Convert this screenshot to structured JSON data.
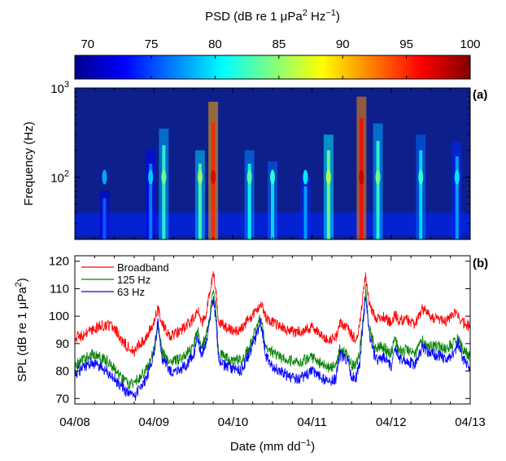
{
  "colorbar": {
    "label_prefix": "PSD (dB re 1 ",
    "label_mu": "μ",
    "label_pa": "Pa",
    "label_sup2": "2",
    "label_hz": " Hz",
    "label_supm1": "−1",
    "label_close": ")",
    "ticks": [
      "70",
      "75",
      "80",
      "85",
      "90",
      "95",
      "100"
    ],
    "range": [
      69,
      100
    ],
    "colormap": [
      "#00008f",
      "#0000ff",
      "#0080ff",
      "#00ffff",
      "#80ff80",
      "#ffff00",
      "#ff8000",
      "#ff0000",
      "#800000"
    ]
  },
  "panel_a": {
    "tag": "(a)",
    "ylabel": "Frequency (Hz)",
    "ytick_base": "10",
    "ytick_exps": [
      "2",
      "3"
    ],
    "background": "#0c1f8c"
  },
  "panel_b": {
    "tag": "(b)",
    "ylabel_prefix": "SPL (dB re 1 ",
    "ylabel_mu": "μ",
    "ylabel_pa": "Pa",
    "ylabel_sup": "2",
    "ylabel_close": ")"
  },
  "xaxis": {
    "ticks": [
      "04/08",
      "04/09",
      "04/10",
      "04/11",
      "04/12",
      "04/13"
    ],
    "label_prefix": "Date (mm dd",
    "label_sup": "−1",
    "label_close": ")"
  },
  "chart_data": [
    {
      "type": "heatmap",
      "title": "(a)",
      "xlabel": "Date (mm dd⁻¹)",
      "ylabel": "Frequency (Hz)",
      "y_scale": "log",
      "ylim": [
        20,
        1000
      ],
      "x_range": [
        "04/08",
        "04/13"
      ],
      "color_range": [
        69,
        100
      ],
      "color_label": "PSD (dB re 1 μPa² Hz⁻¹)",
      "hot_events": [
        {
          "date": "04/08 09:00",
          "peak_psd": 78,
          "freq_top": 70
        },
        {
          "date": "04/08 23:00",
          "peak_psd": 79,
          "freq_top": 200
        },
        {
          "date": "04/09 03:00",
          "peak_psd": 84,
          "freq_top": 350
        },
        {
          "date": "04/09 14:00",
          "peak_psd": 85,
          "freq_top": 200
        },
        {
          "date": "04/09 18:00",
          "peak_psd": 97,
          "freq_top": 700
        },
        {
          "date": "04/10 05:00",
          "peak_psd": 83,
          "freq_top": 200
        },
        {
          "date": "04/10 12:00",
          "peak_psd": 82,
          "freq_top": 150
        },
        {
          "date": "04/10 22:00",
          "peak_psd": 80,
          "freq_top": 100
        },
        {
          "date": "04/11 05:00",
          "peak_psd": 86,
          "freq_top": 300
        },
        {
          "date": "04/11 15:00",
          "peak_psd": 98,
          "freq_top": 800
        },
        {
          "date": "04/11 20:00",
          "peak_psd": 84,
          "freq_top": 400
        },
        {
          "date": "04/12 09:00",
          "peak_psd": 82,
          "freq_top": 300
        },
        {
          "date": "04/12 20:00",
          "peak_psd": 80,
          "freq_top": 250
        }
      ]
    },
    {
      "type": "line",
      "title": "(b)",
      "xlabel": "Date (mm dd⁻¹)",
      "ylabel": "SPL (dB re 1 μPa²)",
      "ylim": [
        68,
        122
      ],
      "yticks": [
        70,
        80,
        90,
        100,
        110,
        120
      ],
      "x_range": [
        "04/08",
        "04/13"
      ],
      "legend_position": "top-left",
      "x": [
        0,
        0.1,
        0.2,
        0.3,
        0.4,
        0.5,
        0.6,
        0.7,
        0.75,
        0.8,
        0.9,
        1.0,
        1.05,
        1.1,
        1.2,
        1.3,
        1.4,
        1.5,
        1.55,
        1.6,
        1.65,
        1.7,
        1.75,
        1.78,
        1.82,
        1.9,
        2.0,
        2.1,
        2.2,
        2.3,
        2.35,
        2.42,
        2.5,
        2.6,
        2.7,
        2.8,
        2.9,
        3.0,
        3.1,
        3.2,
        3.3,
        3.35,
        3.45,
        3.5,
        3.55,
        3.6,
        3.64,
        3.68,
        3.72,
        3.8,
        3.9,
        4.0,
        4.05,
        4.1,
        4.2,
        4.3,
        4.4,
        4.5,
        4.6,
        4.7,
        4.8,
        4.85,
        4.9,
        5.0
      ],
      "series": [
        {
          "name": "Broadband",
          "color": "#ff0000",
          "values": [
            92,
            93,
            95,
            96,
            97,
            96,
            91,
            88,
            87,
            89,
            92,
            98,
            103,
            97,
            93,
            94,
            96,
            99,
            103,
            97,
            100,
            107,
            116,
            110,
            98,
            96,
            95,
            95,
            99,
            102,
            105,
            99,
            98,
            96,
            95,
            94,
            95,
            96,
            94,
            91,
            92,
            98,
            96,
            93,
            92,
            96,
            107,
            115,
            105,
            99,
            100,
            97,
            101,
            98,
            99,
            97,
            103,
            100,
            99,
            98,
            101,
            100,
            98,
            96
          ]
        },
        {
          "name": "125 Hz",
          "color": "#008000",
          "values": [
            82,
            84,
            86,
            85,
            84,
            81,
            77,
            75,
            76,
            77,
            80,
            88,
            97,
            87,
            83,
            84,
            86,
            89,
            95,
            89,
            92,
            98,
            110,
            104,
            86,
            85,
            84,
            84,
            88,
            96,
            100,
            88,
            87,
            85,
            84,
            83,
            84,
            85,
            83,
            81,
            82,
            88,
            86,
            82,
            82,
            86,
            98,
            110,
            97,
            88,
            89,
            86,
            92,
            87,
            88,
            86,
            91,
            89,
            89,
            88,
            91,
            92,
            88,
            85
          ]
        },
        {
          "name": "63 Hz",
          "color": "#0000ff",
          "values": [
            79,
            81,
            83,
            82,
            80,
            77,
            74,
            71,
            70,
            73,
            77,
            86,
            98,
            85,
            80,
            80,
            82,
            86,
            92,
            86,
            89,
            96,
            106,
            100,
            84,
            82,
            81,
            80,
            86,
            93,
            98,
            85,
            82,
            80,
            78,
            77,
            78,
            80,
            78,
            76,
            77,
            86,
            84,
            78,
            77,
            82,
            96,
            108,
            94,
            84,
            85,
            82,
            89,
            84,
            84,
            82,
            89,
            86,
            86,
            84,
            87,
            90,
            85,
            81
          ]
        }
      ]
    }
  ]
}
